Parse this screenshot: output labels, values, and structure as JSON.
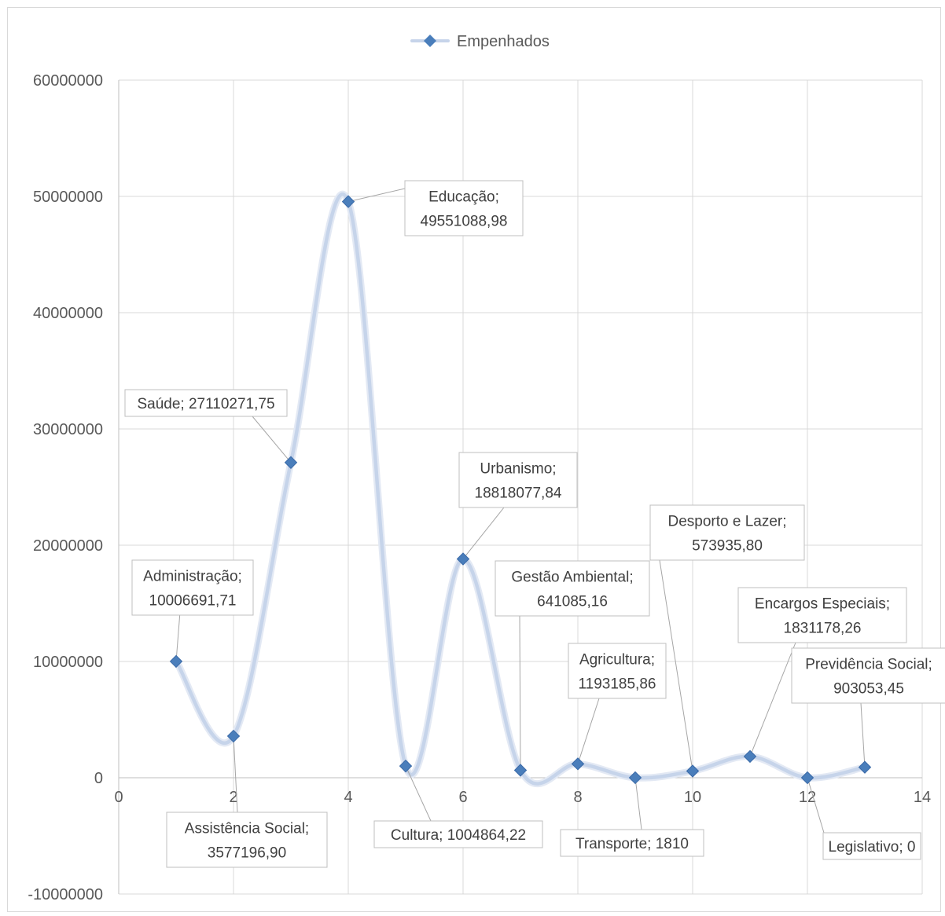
{
  "chart_data": {
    "type": "scatter",
    "series": [
      {
        "name": "Empenhados",
        "color": "#4a7ebb",
        "line_color": "#c6d4ea",
        "points": [
          {
            "x": 1,
            "y": 10006691.71,
            "label": [
              "Administração;",
              "10006691,71"
            ]
          },
          {
            "x": 2,
            "y": 3577196.9,
            "label": [
              "Assistência Social;",
              "3577196,90"
            ]
          },
          {
            "x": 3,
            "y": 27110271.75,
            "label": [
              "Saúde; 27110271,75"
            ]
          },
          {
            "x": 4,
            "y": 49551088.98,
            "label": [
              "Educação;",
              "49551088,98"
            ]
          },
          {
            "x": 5,
            "y": 1004864.22,
            "label": [
              "Cultura; 1004864,22"
            ]
          },
          {
            "x": 6,
            "y": 18818077.84,
            "label": [
              "Urbanismo;",
              "18818077,84"
            ]
          },
          {
            "x": 7,
            "y": 641085.16,
            "label": [
              "Gestão Ambiental;",
              "641085,16"
            ]
          },
          {
            "x": 8,
            "y": 1193185.86,
            "label": [
              "Agricultura;",
              "1193185,86"
            ]
          },
          {
            "x": 9,
            "y": 1810,
            "label": [
              "Transporte; 1810"
            ]
          },
          {
            "x": 10,
            "y": 573935.8,
            "label": [
              "Desporto e Lazer;",
              "573935,80"
            ]
          },
          {
            "x": 11,
            "y": 1831178.26,
            "label": [
              "Encargos Especiais;",
              "1831178,26"
            ]
          },
          {
            "x": 12,
            "y": 0,
            "label": [
              "Legislativo; 0"
            ]
          },
          {
            "x": 13,
            "y": 903053.45,
            "label": [
              "Previdência Social;",
              "903053,45"
            ]
          }
        ]
      }
    ],
    "xlim": [
      0,
      14
    ],
    "ylim": [
      -10000000,
      60000000
    ],
    "x_ticks": [
      "0",
      "2",
      "4",
      "6",
      "8",
      "10",
      "12",
      "14"
    ],
    "y_ticks": [
      "60000000",
      "50000000",
      "40000000",
      "30000000",
      "20000000",
      "10000000",
      "0",
      "-10000000"
    ],
    "grid": true,
    "legend_position": "top",
    "smooth_line": true
  }
}
